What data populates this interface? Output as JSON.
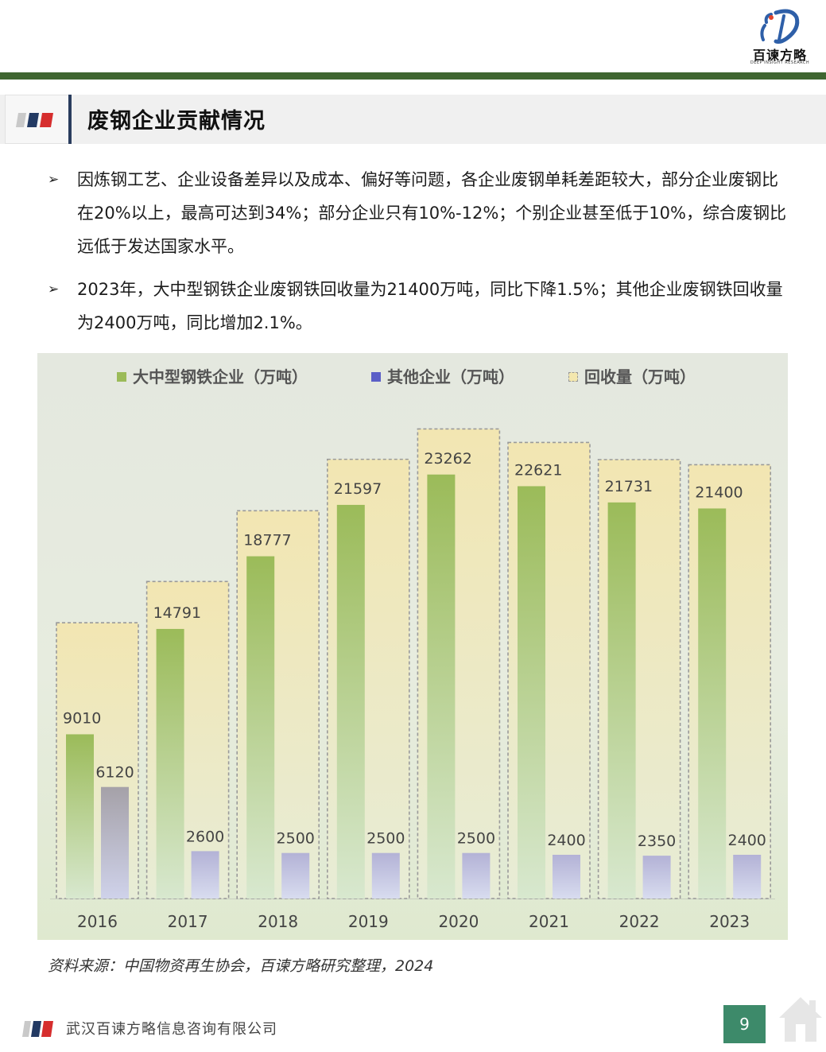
{
  "header": {
    "logo_name": "百谏方略",
    "logo_sub": "DEEP INSIGHT RESEARCH"
  },
  "section": {
    "title": "废钢企业贡献情况"
  },
  "bullets": [
    "因炼钢工艺、企业设备差异以及成本、偏好等问题，各企业废钢单耗差距较大，部分企业废钢比在20%以上，最高可达到34%；部分企业只有10%-12%；个别企业甚至低于10%，综合废钢比远低于发达国家水平。",
    "2023年，大中型钢铁企业废钢铁回收量为21400万吨，同比下降1.5%；其他企业废钢铁回收量为2400万吨，同比增加2.1%。"
  ],
  "bullet_marker": "➢",
  "chart_data": {
    "type": "bar",
    "categories": [
      "2016",
      "2017",
      "2018",
      "2019",
      "2020",
      "2021",
      "2022",
      "2023"
    ],
    "series": [
      {
        "name": "大中型钢铁企业（万吨）",
        "values": [
          9010,
          14791,
          18777,
          21597,
          23262,
          22621,
          21731,
          21400
        ],
        "color": "#9bbb59"
      },
      {
        "name": "其他企业（万吨）",
        "values": [
          6120,
          2600,
          2500,
          2500,
          2500,
          2400,
          2350,
          2400
        ],
        "color": "#5b5fc7"
      },
      {
        "name": "回收量（万吨）",
        "values": [
          15130,
          17391,
          21277,
          24097,
          25762,
          25021,
          24081,
          23800
        ],
        "color": "#f3e7ae"
      }
    ],
    "ylim": [
      0,
      26000
    ],
    "grid": false,
    "legend_position": "top-center"
  },
  "source": "资料来源：中国物资再生协会，百谏方略研究整理，2024",
  "footer": {
    "company": "武汉百谏方略信息咨询有限公司",
    "page_number": "9"
  }
}
